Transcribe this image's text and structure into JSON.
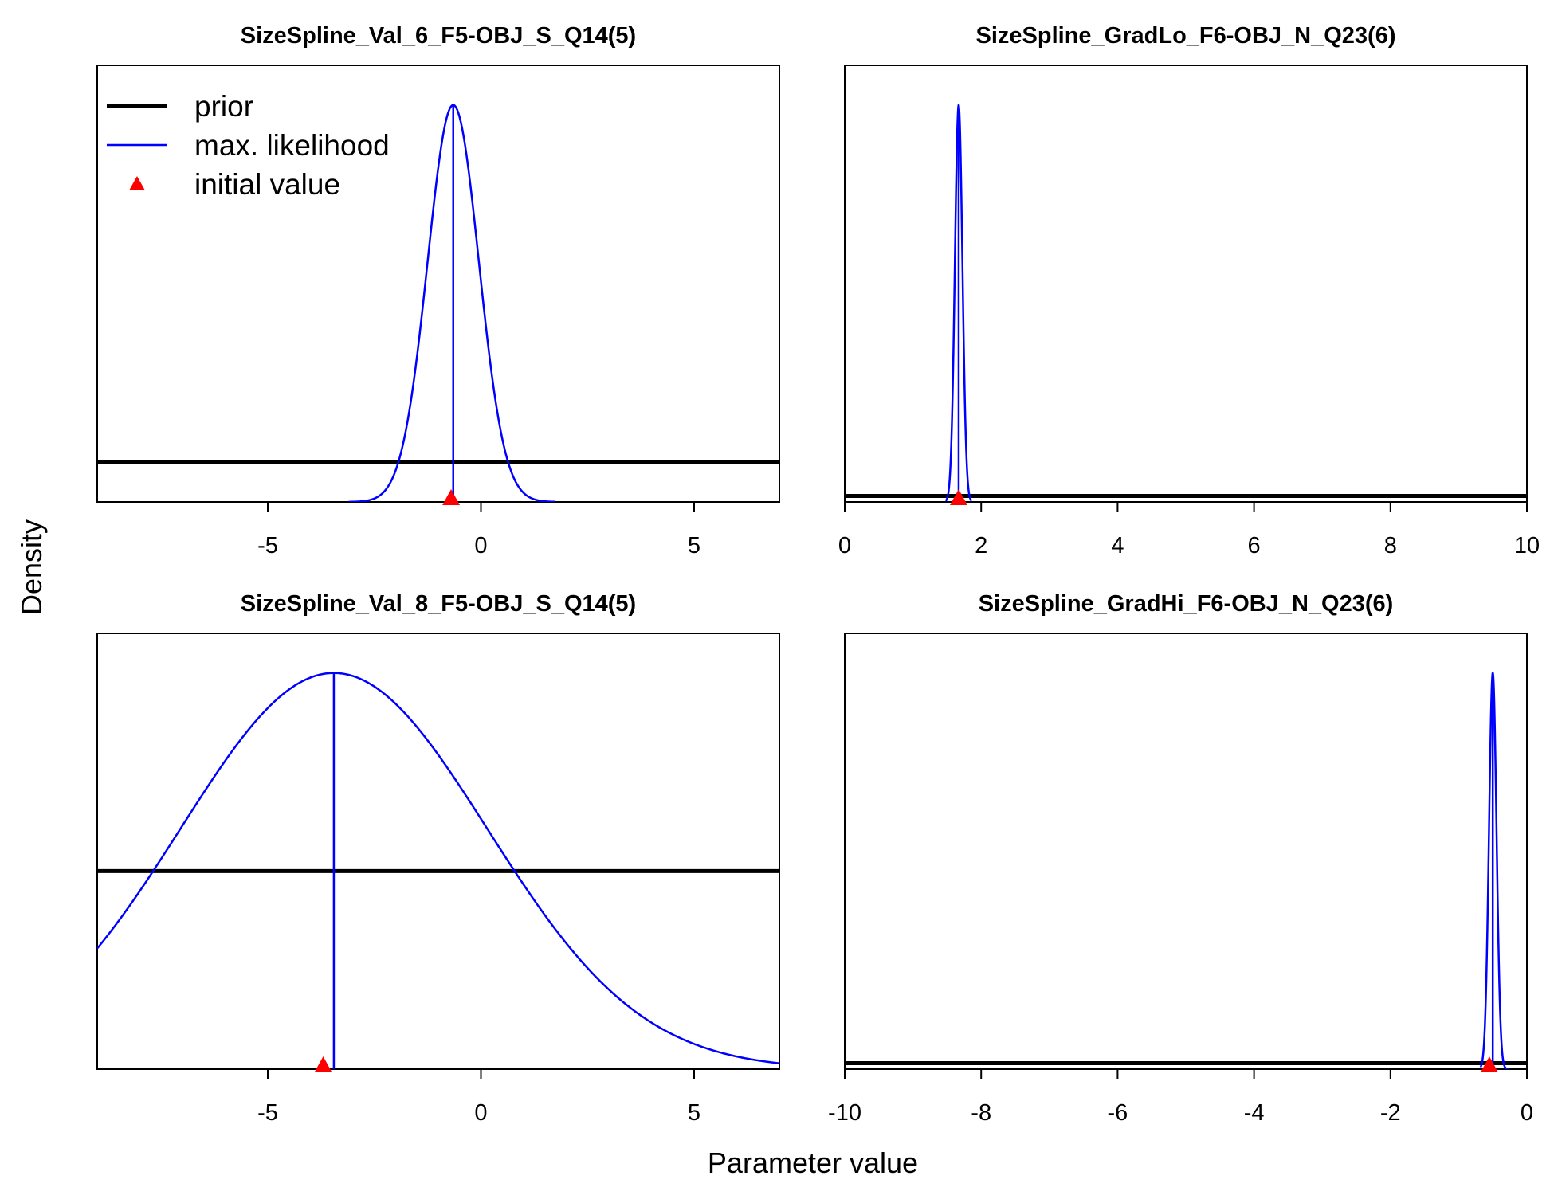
{
  "figure": {
    "ylabel": "Density",
    "xlabel": "Parameter value",
    "legend": {
      "placement": "top-left of first panel",
      "entries": [
        {
          "label": "prior",
          "color": "#000000",
          "style": "thick line"
        },
        {
          "label": "max. likelihood",
          "color": "#0000FF",
          "style": "thin line"
        },
        {
          "label": "initial value",
          "color": "#FF0000",
          "style": "triangle"
        }
      ]
    }
  },
  "chart_data": [
    {
      "type": "line",
      "title": "SizeSpline_Val_6_F5-OBJ_S_Q14(5)",
      "xlim": [
        -9,
        7
      ],
      "xticks": [
        -5,
        0,
        5
      ],
      "xtick_labels": [
        "-5",
        "0",
        "5"
      ],
      "ylim": [
        0,
        1.1
      ],
      "series": [
        {
          "role": "prior",
          "color": "#000000",
          "kind": "uniform",
          "value": 0.1
        },
        {
          "role": "max_likelihood",
          "color": "#0000FF",
          "kind": "normal",
          "mean": -0.65,
          "sd": 0.6,
          "peak": 1.0,
          "cut": [
            -3.1,
            1.75
          ]
        }
      ],
      "mle": -0.65,
      "initial_value": -0.7
    },
    {
      "type": "line",
      "title": "SizeSpline_GradLo_F6-OBJ_N_Q23(6)",
      "xlim": [
        0,
        10
      ],
      "xticks": [
        0,
        2,
        4,
        6,
        8,
        10
      ],
      "xtick_labels": [
        "0",
        "2",
        "4",
        "6",
        "8",
        "10"
      ],
      "ylim": [
        0,
        1.1
      ],
      "series": [
        {
          "role": "prior",
          "color": "#000000",
          "kind": "uniform",
          "value": 0.015
        },
        {
          "role": "max_likelihood",
          "color": "#0000FF",
          "kind": "normal",
          "mean": 1.67,
          "sd": 0.055,
          "peak": 1.0,
          "cut": [
            1.48,
            1.86
          ]
        }
      ],
      "mle": 1.67,
      "initial_value": 1.67
    },
    {
      "type": "line",
      "title": "SizeSpline_Val_8_F5-OBJ_S_Q14(5)",
      "xlim": [
        -9,
        7
      ],
      "xticks": [
        -5,
        0,
        5
      ],
      "xtick_labels": [
        "-5",
        "0",
        "5"
      ],
      "ylim": [
        0,
        1.1
      ],
      "series": [
        {
          "role": "prior",
          "color": "#000000",
          "kind": "uniform",
          "value": 0.5
        },
        {
          "role": "max_likelihood",
          "color": "#0000FF",
          "kind": "normal",
          "mean": -3.45,
          "sd": 3.6,
          "peak": 1.0,
          "cut": [
            -9,
            7
          ]
        }
      ],
      "mle": -3.45,
      "initial_value": -3.7
    },
    {
      "type": "line",
      "title": "SizeSpline_GradHi_F6-OBJ_N_Q23(6)",
      "xlim": [
        -10,
        0
      ],
      "xticks": [
        -10,
        -8,
        -6,
        -4,
        -2,
        0
      ],
      "xtick_labels": [
        "-10",
        "-8",
        "-6",
        "-4",
        "-2",
        "0"
      ],
      "ylim": [
        0,
        1.1
      ],
      "series": [
        {
          "role": "prior",
          "color": "#000000",
          "kind": "uniform",
          "value": 0.015
        },
        {
          "role": "max_likelihood",
          "color": "#0000FF",
          "kind": "normal",
          "mean": -0.5,
          "sd": 0.055,
          "peak": 1.0,
          "cut": [
            -0.68,
            -0.27
          ]
        }
      ],
      "mle": -0.5,
      "initial_value": -0.55
    }
  ]
}
